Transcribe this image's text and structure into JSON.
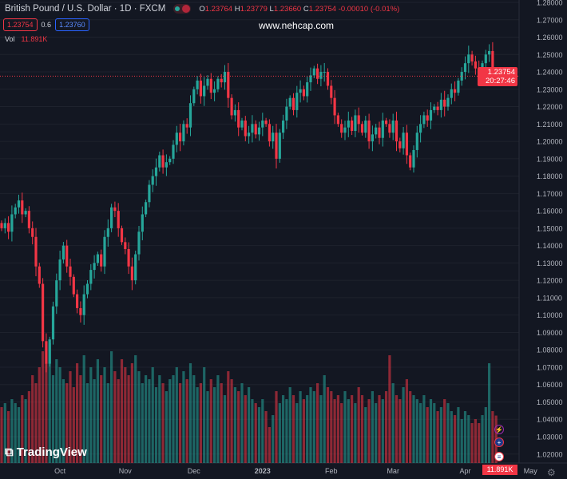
{
  "header": {
    "title": "British Pound / U.S. Dollar · 1D · FXCM",
    "o_label": "O",
    "o": "1.23764",
    "h_label": "H",
    "h": "1.23779",
    "l_label": "L",
    "l": "1.23660",
    "c_label": "C",
    "c": "1.23754",
    "change": "-0.00010 (-0.01%)"
  },
  "bid": "1.23754",
  "spread": "0.6",
  "ask": "1.23760",
  "volume": {
    "label": "Vol",
    "value": "11.891K"
  },
  "watermark": "www.nehcap.com",
  "logo": "TradingView",
  "price_label": {
    "price": "1.23754",
    "countdown": "20:27:46"
  },
  "volume_label": "11.891K",
  "colors": {
    "up": "#26a69a",
    "down": "#f23645",
    "background": "#131722"
  },
  "chart_data": {
    "type": "candlestick",
    "title": "British Pound / U.S. Dollar · 1D · FXCM",
    "ylim": [
      1.02,
      1.28
    ],
    "yticks": [
      "1.28000",
      "1.27000",
      "1.26000",
      "1.25000",
      "1.24000",
      "1.23000",
      "1.22000",
      "1.21000",
      "1.20000",
      "1.19000",
      "1.18000",
      "1.17000",
      "1.16000",
      "1.15000",
      "1.14000",
      "1.13000",
      "1.12000",
      "1.11000",
      "1.10000",
      "1.09000",
      "1.08000",
      "1.07000",
      "1.06000",
      "1.05000",
      "1.04000",
      "1.03000",
      "1.02000"
    ],
    "xticks": [
      {
        "label": "Oct",
        "bar": 17
      },
      {
        "label": "Nov",
        "bar": 36
      },
      {
        "label": "Dec",
        "bar": 56
      },
      {
        "label": "2023",
        "bar": 76
      },
      {
        "label": "Feb",
        "bar": 96
      },
      {
        "label": "Mar",
        "bar": 114
      },
      {
        "label": "Apr",
        "bar": 135
      },
      {
        "label": "May",
        "bar": 154
      }
    ],
    "closes": [
      1.15,
      1.153,
      1.148,
      1.158,
      1.162,
      1.166,
      1.158,
      1.16,
      1.15,
      1.145,
      1.128,
      1.118,
      1.085,
      1.072,
      1.086,
      1.105,
      1.12,
      1.132,
      1.14,
      1.128,
      1.122,
      1.112,
      1.104,
      1.1,
      1.112,
      1.118,
      1.126,
      1.13,
      1.135,
      1.128,
      1.145,
      1.15,
      1.162,
      1.16,
      1.15,
      1.142,
      1.138,
      1.128,
      1.12,
      1.135,
      1.148,
      1.158,
      1.165,
      1.175,
      1.18,
      1.185,
      1.192,
      1.185,
      1.188,
      1.19,
      1.198,
      1.205,
      1.2,
      1.21,
      1.208,
      1.222,
      1.23,
      1.235,
      1.226,
      1.232,
      1.236,
      1.228,
      1.23,
      1.236,
      1.234,
      1.24,
      1.225,
      1.215,
      1.218,
      1.208,
      1.212,
      1.203,
      1.205,
      1.21,
      1.204,
      1.208,
      1.212,
      1.21,
      1.2,
      1.205,
      1.19,
      1.205,
      1.212,
      1.22,
      1.225,
      1.218,
      1.228,
      1.23,
      1.226,
      1.234,
      1.238,
      1.242,
      1.236,
      1.24,
      1.24,
      1.232,
      1.225,
      1.215,
      1.21,
      1.205,
      1.208,
      1.212,
      1.206,
      1.215,
      1.21,
      1.205,
      1.212,
      1.2,
      1.204,
      1.208,
      1.202,
      1.212,
      1.21,
      1.205,
      1.212,
      1.2,
      1.196,
      1.205,
      1.192,
      1.185,
      1.195,
      1.205,
      1.21,
      1.215,
      1.212,
      1.218,
      1.22,
      1.218,
      1.224,
      1.22,
      1.225,
      1.23,
      1.228,
      1.235,
      1.24,
      1.245,
      1.25,
      1.246,
      1.242,
      1.24,
      1.245,
      1.25,
      1.252,
      1.24,
      1.23754
    ],
    "volumes_k": [
      14,
      15,
      13,
      16,
      15,
      14,
      17,
      16,
      18,
      22,
      20,
      24,
      28,
      25,
      30,
      22,
      26,
      24,
      21,
      20,
      23,
      19,
      25,
      22,
      27,
      20,
      24,
      21,
      26,
      22,
      24,
      20,
      28,
      23,
      21,
      26,
      24,
      22,
      25,
      27,
      23,
      20,
      22,
      21,
      24,
      19,
      22,
      20,
      18,
      21,
      22,
      24,
      20,
      23,
      21,
      25,
      22,
      19,
      20,
      24,
      18,
      21,
      19,
      22,
      20,
      17,
      23,
      21,
      19,
      18,
      20,
      17,
      19,
      16,
      15,
      14,
      16,
      13,
      9,
      12,
      18,
      15,
      17,
      16,
      19,
      17,
      15,
      18,
      16,
      17,
      19,
      18,
      20,
      17,
      22,
      19,
      18,
      16,
      17,
      15,
      18,
      16,
      17,
      15,
      19,
      17,
      14,
      16,
      18,
      15,
      17,
      16,
      18,
      27,
      20,
      17,
      16,
      19,
      21,
      18,
      17,
      16,
      15,
      17,
      14,
      16,
      15,
      13,
      14,
      16,
      15,
      13,
      12,
      14,
      11,
      13,
      12,
      10,
      11,
      10,
      12,
      14,
      25,
      13,
      11.891
    ]
  }
}
